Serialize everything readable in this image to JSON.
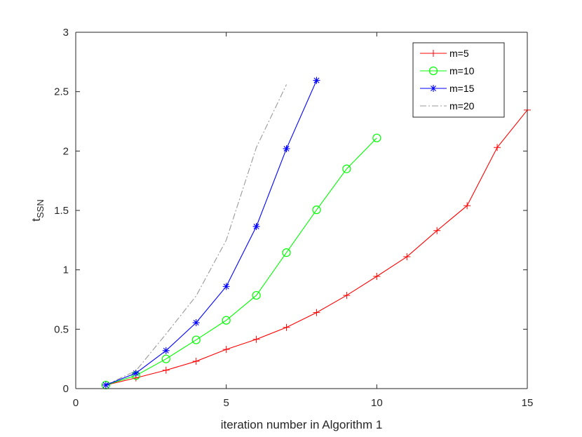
{
  "chart_data": {
    "type": "line",
    "xlabel": "iteration number in Algorithm 1",
    "ylabel": "t",
    "ylabel_sub": "SSN",
    "xlim": [
      0,
      15
    ],
    "ylim": [
      0,
      3
    ],
    "xticks": [
      0,
      5,
      10,
      15
    ],
    "yticks": [
      0,
      0.5,
      1,
      1.5,
      2,
      2.5,
      3
    ],
    "xtick_labels": [
      "0",
      "5",
      "10",
      "15"
    ],
    "ytick_labels": [
      "0",
      "0.5",
      "1",
      "1.5",
      "2",
      "2.5",
      "3"
    ],
    "grid": false,
    "legend_position": "top-right",
    "series": [
      {
        "name": "m=5",
        "color": "#ff0000",
        "marker": "plus",
        "linestyle": "solid",
        "x": [
          1,
          2,
          3,
          4,
          5,
          6,
          7,
          8,
          9,
          10,
          11,
          12,
          13,
          14,
          15
        ],
        "y": [
          0.03,
          0.09,
          0.155,
          0.23,
          0.33,
          0.415,
          0.515,
          0.64,
          0.785,
          0.945,
          1.11,
          1.33,
          1.54,
          2.03,
          2.345
        ]
      },
      {
        "name": "m=10",
        "color": "#00ff00",
        "marker": "circle",
        "linestyle": "solid",
        "x": [
          1,
          2,
          3,
          4,
          5,
          6,
          7,
          8,
          9,
          10
        ],
        "y": [
          0.03,
          0.11,
          0.25,
          0.41,
          0.575,
          0.785,
          1.145,
          1.505,
          1.85,
          2.11
        ]
      },
      {
        "name": "m=15",
        "color": "#0000ff",
        "marker": "asterisk",
        "linestyle": "solid",
        "x": [
          1,
          2,
          3,
          4,
          5,
          6,
          7,
          8
        ],
        "y": [
          0.03,
          0.13,
          0.32,
          0.555,
          0.86,
          1.365,
          2.02,
          2.595
        ]
      },
      {
        "name": "m=20",
        "color": "#999999",
        "marker": "none",
        "linestyle": "dashdot",
        "x": [
          1,
          2,
          3,
          4,
          5,
          6,
          7
        ],
        "y": [
          0.03,
          0.15,
          0.46,
          0.78,
          1.25,
          2.03,
          2.56
        ]
      }
    ]
  }
}
